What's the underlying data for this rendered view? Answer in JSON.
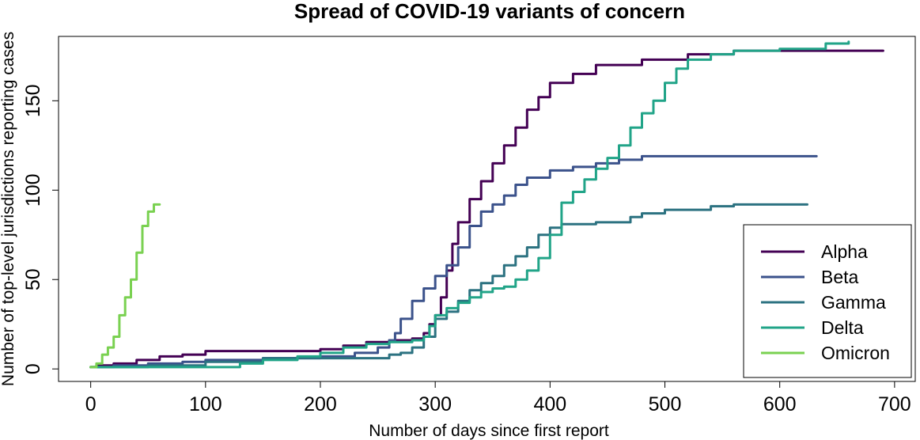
{
  "chart_data": {
    "type": "line",
    "title": "Spread of COVID-19 variants of concern",
    "xlabel": "Number of days since first report",
    "ylabel": "Number of top-level jurisdictions reporting cases",
    "xlim": [
      -28,
      718
    ],
    "ylim": [
      -7,
      186
    ],
    "xticks": [
      0,
      100,
      200,
      300,
      400,
      500,
      600,
      700
    ],
    "yticks": [
      0,
      50,
      100,
      150
    ],
    "grid": false,
    "legend_position": "bottom-right",
    "series": [
      {
        "name": "Alpha",
        "color": "#440154",
        "points": [
          [
            0,
            1
          ],
          [
            5,
            2
          ],
          [
            20,
            3
          ],
          [
            40,
            5
          ],
          [
            60,
            7
          ],
          [
            80,
            8
          ],
          [
            100,
            10
          ],
          [
            180,
            10
          ],
          [
            200,
            11
          ],
          [
            220,
            13
          ],
          [
            240,
            15
          ],
          [
            260,
            16
          ],
          [
            280,
            17
          ],
          [
            290,
            20
          ],
          [
            295,
            25
          ],
          [
            300,
            30
          ],
          [
            305,
            40
          ],
          [
            310,
            55
          ],
          [
            315,
            70
          ],
          [
            320,
            82
          ],
          [
            330,
            95
          ],
          [
            340,
            105
          ],
          [
            350,
            115
          ],
          [
            360,
            125
          ],
          [
            370,
            135
          ],
          [
            380,
            145
          ],
          [
            390,
            152
          ],
          [
            400,
            160
          ],
          [
            420,
            165
          ],
          [
            440,
            170
          ],
          [
            480,
            173
          ],
          [
            520,
            176
          ],
          [
            560,
            178
          ],
          [
            600,
            178
          ],
          [
            690,
            178
          ]
        ]
      },
      {
        "name": "Beta",
        "color": "#3b528b",
        "points": [
          [
            0,
            1
          ],
          [
            20,
            2
          ],
          [
            50,
            3
          ],
          [
            80,
            4
          ],
          [
            100,
            5
          ],
          [
            150,
            6
          ],
          [
            200,
            7
          ],
          [
            230,
            9
          ],
          [
            250,
            12
          ],
          [
            260,
            16
          ],
          [
            265,
            20
          ],
          [
            270,
            28
          ],
          [
            280,
            38
          ],
          [
            290,
            45
          ],
          [
            300,
            52
          ],
          [
            310,
            58
          ],
          [
            320,
            68
          ],
          [
            330,
            80
          ],
          [
            340,
            88
          ],
          [
            350,
            92
          ],
          [
            360,
            97
          ],
          [
            370,
            103
          ],
          [
            380,
            107
          ],
          [
            400,
            111
          ],
          [
            420,
            113
          ],
          [
            440,
            115
          ],
          [
            460,
            117
          ],
          [
            480,
            119
          ],
          [
            550,
            119
          ],
          [
            632,
            119
          ]
        ]
      },
      {
        "name": "Gamma",
        "color": "#2c7281",
        "points": [
          [
            0,
            1
          ],
          [
            50,
            2
          ],
          [
            100,
            4
          ],
          [
            150,
            6
          ],
          [
            200,
            6
          ],
          [
            240,
            6
          ],
          [
            260,
            8
          ],
          [
            270,
            9
          ],
          [
            280,
            12
          ],
          [
            290,
            18
          ],
          [
            300,
            28
          ],
          [
            310,
            32
          ],
          [
            320,
            38
          ],
          [
            330,
            44
          ],
          [
            340,
            48
          ],
          [
            350,
            52
          ],
          [
            360,
            58
          ],
          [
            370,
            63
          ],
          [
            380,
            68
          ],
          [
            390,
            75
          ],
          [
            400,
            79
          ],
          [
            410,
            81
          ],
          [
            440,
            82
          ],
          [
            470,
            85
          ],
          [
            480,
            87
          ],
          [
            500,
            89
          ],
          [
            540,
            91
          ],
          [
            560,
            92
          ],
          [
            600,
            92
          ],
          [
            624,
            92
          ]
        ]
      },
      {
        "name": "Delta",
        "color": "#21a488",
        "points": [
          [
            0,
            1
          ],
          [
            100,
            1
          ],
          [
            130,
            3
          ],
          [
            150,
            5
          ],
          [
            180,
            7
          ],
          [
            200,
            9
          ],
          [
            220,
            12
          ],
          [
            240,
            14
          ],
          [
            260,
            15
          ],
          [
            280,
            16
          ],
          [
            290,
            18
          ],
          [
            295,
            24
          ],
          [
            300,
            30
          ],
          [
            310,
            34
          ],
          [
            320,
            37
          ],
          [
            330,
            40
          ],
          [
            340,
            43
          ],
          [
            350,
            45
          ],
          [
            360,
            46
          ],
          [
            370,
            50
          ],
          [
            380,
            55
          ],
          [
            390,
            62
          ],
          [
            400,
            75
          ],
          [
            410,
            93
          ],
          [
            420,
            99
          ],
          [
            430,
            106
          ],
          [
            440,
            112
          ],
          [
            450,
            118
          ],
          [
            460,
            125
          ],
          [
            470,
            135
          ],
          [
            480,
            143
          ],
          [
            490,
            150
          ],
          [
            500,
            160
          ],
          [
            510,
            168
          ],
          [
            520,
            173
          ],
          [
            540,
            176
          ],
          [
            560,
            178
          ],
          [
            600,
            179
          ],
          [
            640,
            182
          ],
          [
            660,
            183
          ]
        ]
      },
      {
        "name": "Omicron",
        "color": "#7ad151",
        "points": [
          [
            0,
            1
          ],
          [
            5,
            3
          ],
          [
            10,
            8
          ],
          [
            15,
            12
          ],
          [
            20,
            18
          ],
          [
            25,
            30
          ],
          [
            30,
            40
          ],
          [
            35,
            50
          ],
          [
            40,
            65
          ],
          [
            45,
            80
          ],
          [
            50,
            88
          ],
          [
            55,
            92
          ],
          [
            60,
            92
          ]
        ]
      }
    ]
  }
}
